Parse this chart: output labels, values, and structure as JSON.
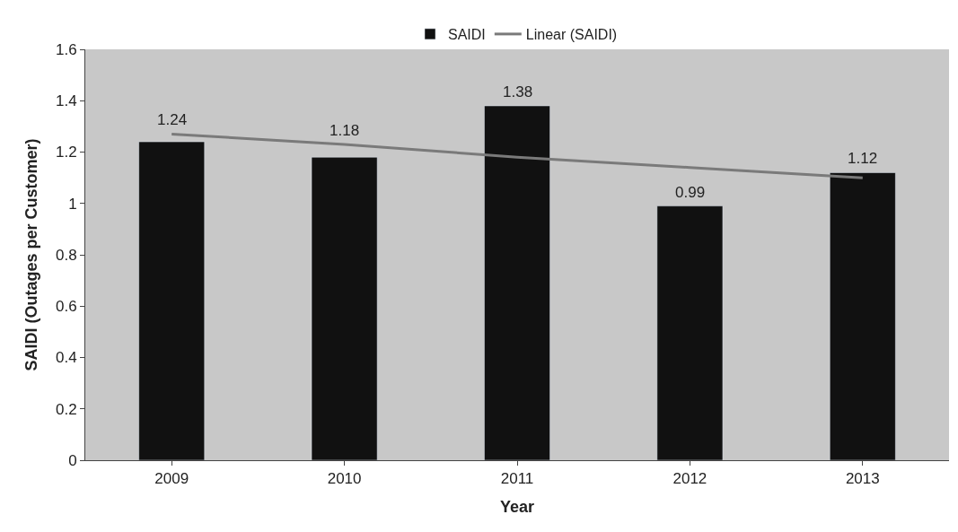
{
  "chart_data": {
    "type": "bar",
    "xlabel": "Year",
    "ylabel": "SAIDI (Outages per Customer)",
    "categories": [
      "2009",
      "2010",
      "2011",
      "2012",
      "2013"
    ],
    "series": [
      {
        "name": "SAIDI",
        "color": "#111111",
        "values": [
          1.24,
          1.18,
          1.38,
          0.99,
          1.12
        ],
        "value_labels": [
          "1.24",
          "1.18",
          "1.38",
          "0.99",
          "1.12"
        ]
      },
      {
        "name": "Linear (SAIDI)",
        "type": "line",
        "color": "#7a7a7a",
        "values": [
          1.27,
          1.23,
          1.18,
          1.14,
          1.1
        ]
      }
    ],
    "ylim": [
      0,
      1.6
    ],
    "yticks": [
      0,
      0.2,
      0.4,
      0.6,
      0.8,
      1,
      1.2,
      1.4,
      1.6
    ],
    "legend": "top",
    "grid": false
  }
}
